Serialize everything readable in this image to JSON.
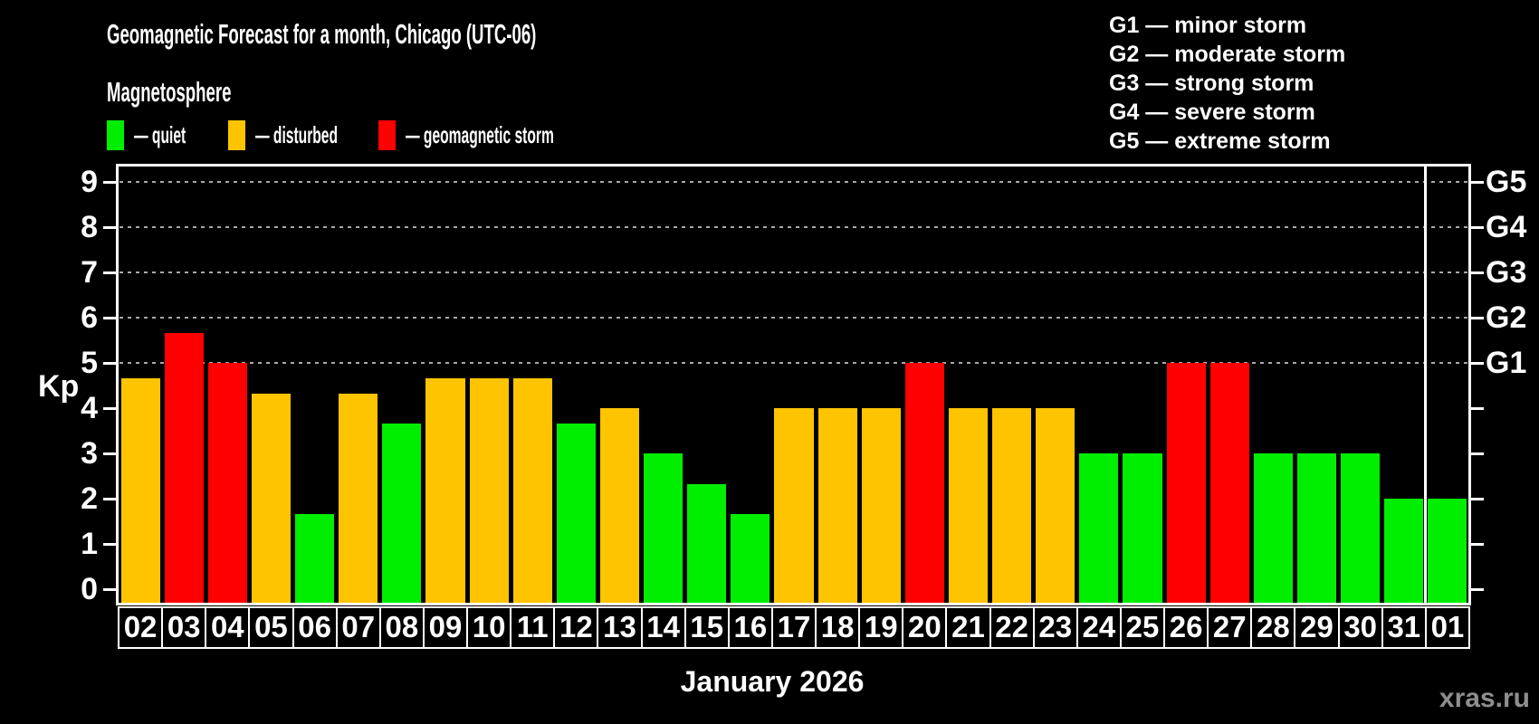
{
  "header": {
    "title": "Geomagnetic Forecast for a month, Chicago (UTC-06)",
    "subtitle": "Magnetosphere"
  },
  "magnetosphere_legend": [
    {
      "label": "— quiet",
      "status": "quiet"
    },
    {
      "label": "— disturbed",
      "status": "disturbed"
    },
    {
      "label": "— geomagnetic storm",
      "status": "storm"
    }
  ],
  "g_scale_legend": [
    "G1 — minor storm",
    "G2 — moderate storm",
    "G3 — strong storm",
    "G4 — severe storm",
    "G5 — extreme storm"
  ],
  "colors": {
    "quiet": "#00ee00",
    "disturbed": "#ffc400",
    "storm": "#ff0000",
    "grid": "#a8a8a8",
    "axis": "#ffffff",
    "watermark": "#8f8f8f"
  },
  "chart_data": {
    "type": "bar",
    "title": "Geomagnetic Forecast for a month, Chicago (UTC-06)",
    "xlabel": "January 2026",
    "ylabel": "Kp",
    "ylim": [
      0,
      9.4
    ],
    "yticks": [
      0,
      1,
      2,
      3,
      4,
      5,
      6,
      7,
      8,
      9
    ],
    "gridlines_kp": [
      5,
      6,
      7,
      8,
      9
    ],
    "grid": "dashed, horizontal, only at Kp 5-9",
    "legend_position": "top-left",
    "right_axis_labels": [
      {
        "label": "G1",
        "kp": 5
      },
      {
        "label": "G2",
        "kp": 6
      },
      {
        "label": "G3",
        "kp": 7
      },
      {
        "label": "G4",
        "kp": 8
      },
      {
        "label": "G5",
        "kp": 9
      }
    ],
    "categories": [
      "02",
      "03",
      "04",
      "05",
      "06",
      "07",
      "08",
      "09",
      "10",
      "11",
      "12",
      "13",
      "14",
      "15",
      "16",
      "17",
      "18",
      "19",
      "20",
      "21",
      "22",
      "23",
      "24",
      "25",
      "26",
      "27",
      "28",
      "29",
      "30",
      "31",
      "01"
    ],
    "points": [
      {
        "date": "02",
        "kp": 4.67,
        "status": "disturbed"
      },
      {
        "date": "03",
        "kp": 5.67,
        "status": "storm"
      },
      {
        "date": "04",
        "kp": 5.0,
        "status": "storm"
      },
      {
        "date": "05",
        "kp": 4.33,
        "status": "disturbed"
      },
      {
        "date": "06",
        "kp": 1.67,
        "status": "quiet"
      },
      {
        "date": "07",
        "kp": 4.33,
        "status": "disturbed"
      },
      {
        "date": "08",
        "kp": 3.67,
        "status": "quiet"
      },
      {
        "date": "09",
        "kp": 4.67,
        "status": "disturbed"
      },
      {
        "date": "10",
        "kp": 4.67,
        "status": "disturbed"
      },
      {
        "date": "11",
        "kp": 4.67,
        "status": "disturbed"
      },
      {
        "date": "12",
        "kp": 3.67,
        "status": "quiet"
      },
      {
        "date": "13",
        "kp": 4.0,
        "status": "disturbed"
      },
      {
        "date": "14",
        "kp": 3.0,
        "status": "quiet"
      },
      {
        "date": "15",
        "kp": 2.33,
        "status": "quiet"
      },
      {
        "date": "16",
        "kp": 1.67,
        "status": "quiet"
      },
      {
        "date": "17",
        "kp": 4.0,
        "status": "disturbed"
      },
      {
        "date": "18",
        "kp": 4.0,
        "status": "disturbed"
      },
      {
        "date": "19",
        "kp": 4.0,
        "status": "disturbed"
      },
      {
        "date": "20",
        "kp": 5.0,
        "status": "storm"
      },
      {
        "date": "21",
        "kp": 4.0,
        "status": "disturbed"
      },
      {
        "date": "22",
        "kp": 4.0,
        "status": "disturbed"
      },
      {
        "date": "23",
        "kp": 4.0,
        "status": "disturbed"
      },
      {
        "date": "24",
        "kp": 3.0,
        "status": "quiet"
      },
      {
        "date": "25",
        "kp": 3.0,
        "status": "quiet"
      },
      {
        "date": "26",
        "kp": 5.0,
        "status": "storm"
      },
      {
        "date": "27",
        "kp": 5.0,
        "status": "storm"
      },
      {
        "date": "28",
        "kp": 3.0,
        "status": "quiet"
      },
      {
        "date": "29",
        "kp": 3.0,
        "status": "quiet"
      },
      {
        "date": "30",
        "kp": 3.0,
        "status": "quiet"
      },
      {
        "date": "31",
        "kp": 2.0,
        "status": "quiet"
      },
      {
        "date": "01",
        "kp": 2.0,
        "status": "quiet"
      }
    ],
    "month_separator_index": 30
  },
  "footer": {
    "month_label": "January 2026",
    "watermark": "xras.ru"
  }
}
